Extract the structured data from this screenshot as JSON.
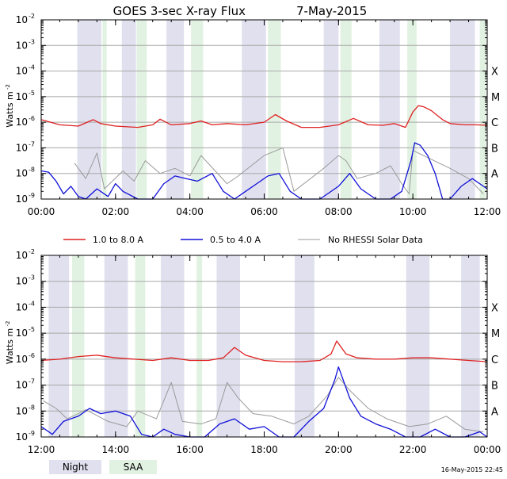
{
  "title": "GOES 3-sec X-ray Flux",
  "date": "7-May-2015",
  "footer_timestamp": "16-May-2015 22:45",
  "colors": {
    "long_channel": "#e02020",
    "short_channel": "#1010d8",
    "no_rhessi": "#9a9a9a",
    "night_band": "#e0e0ef",
    "saa_band": "#e2f2e2",
    "grid": "#a8a8a8",
    "axis": "#000000"
  },
  "legend": {
    "long": "1.0 to 8.0 A",
    "short": "0.5 to 4.0 A",
    "norhessi": "No RHESSI Solar Data",
    "night": "Night",
    "saa": "SAA"
  },
  "chart_data": [
    {
      "type": "line",
      "panel": "top",
      "ylabel": "Watts m",
      "ylabel_exponent": "-2",
      "yscale": "log",
      "ylim_exp": [
        -9,
        -2
      ],
      "y_ticks": [
        {
          "base": "10",
          "exp": "-2"
        },
        {
          "base": "10",
          "exp": "-3"
        },
        {
          "base": "10",
          "exp": "-4"
        },
        {
          "base": "10",
          "exp": "-5"
        },
        {
          "base": "10",
          "exp": "-6"
        },
        {
          "base": "10",
          "exp": "-7"
        },
        {
          "base": "10",
          "exp": "-8"
        },
        {
          "base": "10",
          "exp": "-9"
        }
      ],
      "xlim_hours": [
        0,
        12
      ],
      "x_ticks": [
        "00:00",
        "02:00",
        "04:00",
        "06:00",
        "08:00",
        "10:00",
        "12:00"
      ],
      "class_labels": [
        "X",
        "M",
        "C",
        "B",
        "A"
      ],
      "night_bands_hours": [
        [
          0.97,
          1.62
        ],
        [
          2.17,
          2.55
        ],
        [
          3.37,
          3.84
        ],
        [
          5.4,
          6.05
        ],
        [
          7.6,
          8.0
        ],
        [
          9.1,
          9.65
        ],
        [
          11.0,
          11.67
        ]
      ],
      "saa_bands_hours": [
        [
          1.65,
          1.76
        ],
        [
          2.57,
          2.84
        ],
        [
          4.03,
          4.36
        ],
        [
          6.1,
          6.45
        ],
        [
          8.05,
          8.35
        ],
        [
          9.85,
          10.1
        ],
        [
          11.8,
          11.97
        ]
      ],
      "series": [
        {
          "name": "1.0 to 8.0 A",
          "color": "#e02020",
          "x": [
            0,
            0.5,
            1,
            1.4,
            1.6,
            2,
            2.6,
            3,
            3.2,
            3.5,
            4,
            4.3,
            4.6,
            5,
            5.5,
            6,
            6.3,
            6.6,
            7,
            7.5,
            8,
            8.4,
            8.8,
            9.2,
            9.5,
            9.8,
            10,
            10.15,
            10.3,
            10.5,
            10.8,
            11,
            11.4,
            11.7,
            12
          ],
          "log10": [
            -5.9,
            -6.1,
            -6.15,
            -5.9,
            -6.05,
            -6.15,
            -6.2,
            -6.1,
            -5.88,
            -6.1,
            -6.05,
            -5.95,
            -6.1,
            -6.05,
            -6.1,
            -6.0,
            -5.7,
            -5.95,
            -6.2,
            -6.2,
            -6.1,
            -5.85,
            -6.1,
            -6.12,
            -6.05,
            -6.2,
            -5.6,
            -5.35,
            -5.4,
            -5.55,
            -5.9,
            -6.05,
            -6.1,
            -6.1,
            -6.12
          ]
        },
        {
          "name": "0.5 to 4.0 A",
          "color": "#1010d8",
          "x": [
            0,
            0.2,
            0.4,
            0.6,
            0.8,
            1.0,
            1.2,
            1.5,
            1.8,
            2.0,
            2.2,
            2.6,
            3.0,
            3.3,
            3.6,
            3.9,
            4.2,
            4.6,
            4.9,
            5.2,
            5.5,
            5.8,
            6.1,
            6.4,
            6.7,
            7.0,
            7.5,
            8.0,
            8.3,
            8.6,
            9.0,
            9.4,
            9.7,
            9.95,
            10.05,
            10.2,
            10.4,
            10.6,
            10.8,
            11.0,
            11.3,
            11.6,
            12.0
          ],
          "log10": [
            -7.9,
            -7.95,
            -8.3,
            -8.8,
            -8.5,
            -8.9,
            -9.0,
            -8.6,
            -8.9,
            -8.4,
            -8.7,
            -9.0,
            -9.0,
            -8.4,
            -8.1,
            -8.2,
            -8.3,
            -8.0,
            -8.7,
            -9.0,
            -8.7,
            -8.4,
            -8.1,
            -8.0,
            -8.7,
            -9.0,
            -9.0,
            -8.5,
            -8.0,
            -8.6,
            -9.0,
            -9.0,
            -8.7,
            -7.5,
            -6.8,
            -6.9,
            -7.3,
            -8.0,
            -9.0,
            -9.0,
            -8.5,
            -8.2,
            -8.6
          ]
        },
        {
          "name": "No RHESSI Solar Data",
          "color": "#9a9a9a",
          "x": [
            0.9,
            1.2,
            1.5,
            1.7,
            2.2,
            2.5,
            2.8,
            3.2,
            3.6,
            4.0,
            4.3,
            5.0,
            5.3,
            6.0,
            6.5,
            6.8,
            7.6,
            8.0,
            8.2,
            8.5,
            9.0,
            9.4,
            9.7,
            9.9,
            10.0,
            11.0,
            11.5,
            11.9
          ],
          "log10": [
            -7.6,
            -8.2,
            -7.2,
            -8.6,
            -7.9,
            -8.3,
            -7.5,
            -8.0,
            -7.8,
            -8.1,
            -7.3,
            -8.4,
            -8.1,
            -7.3,
            -7.0,
            -8.7,
            -7.8,
            -7.3,
            -7.5,
            -8.2,
            -8.0,
            -7.7,
            -8.4,
            -8.8,
            -7.1,
            -7.8,
            -8.2,
            -8.8
          ]
        }
      ]
    },
    {
      "type": "line",
      "panel": "bottom",
      "ylabel": "Watts m",
      "ylabel_exponent": "-2",
      "yscale": "log",
      "ylim_exp": [
        -9,
        -2
      ],
      "y_ticks": [
        {
          "base": "10",
          "exp": "-2"
        },
        {
          "base": "10",
          "exp": "-3"
        },
        {
          "base": "10",
          "exp": "-4"
        },
        {
          "base": "10",
          "exp": "-5"
        },
        {
          "base": "10",
          "exp": "-6"
        },
        {
          "base": "10",
          "exp": "-7"
        },
        {
          "base": "10",
          "exp": "-8"
        },
        {
          "base": "10",
          "exp": "-9"
        }
      ],
      "xlim_hours": [
        12,
        24
      ],
      "x_ticks": [
        "12:00",
        "14:00",
        "16:00",
        "18:00",
        "20:00",
        "22:00",
        "00:00"
      ],
      "class_labels": [
        "X",
        "M",
        "C",
        "B",
        "A"
      ],
      "night_bands_hours": [
        [
          12.2,
          12.75
        ],
        [
          13.7,
          14.33
        ],
        [
          15.22,
          15.85
        ],
        [
          16.72,
          17.35
        ],
        [
          18.82,
          19.35
        ],
        [
          21.82,
          22.45
        ],
        [
          23.3,
          23.8
        ]
      ],
      "saa_bands_hours": [
        [
          12.83,
          13.16
        ],
        [
          14.53,
          14.8
        ],
        [
          16.18,
          16.33
        ]
      ],
      "series": [
        {
          "name": "1.0 to 8.0 A",
          "color": "#e02020",
          "x": [
            12,
            12.5,
            13,
            13.5,
            14,
            14.5,
            15,
            15.5,
            16,
            16.5,
            16.9,
            17.2,
            17.5,
            18,
            18.5,
            19,
            19.5,
            19.8,
            19.95,
            20.2,
            20.5,
            21,
            21.5,
            22,
            22.5,
            23,
            23.5,
            24
          ],
          "log10": [
            -6.05,
            -6.0,
            -5.9,
            -5.85,
            -5.95,
            -6.0,
            -6.05,
            -5.95,
            -6.05,
            -6.05,
            -5.95,
            -5.55,
            -5.85,
            -6.05,
            -6.1,
            -6.1,
            -6.05,
            -5.8,
            -5.3,
            -5.8,
            -5.95,
            -6.0,
            -6.0,
            -5.95,
            -5.95,
            -6.0,
            -6.05,
            -6.1
          ]
        },
        {
          "name": "0.5 to 4.0 A",
          "color": "#1010d8",
          "x": [
            12,
            12.3,
            12.6,
            13.0,
            13.3,
            13.6,
            14.0,
            14.4,
            14.7,
            15.0,
            15.3,
            15.6,
            16.0,
            16.4,
            16.8,
            17.2,
            17.6,
            18.0,
            18.4,
            18.8,
            19.2,
            19.6,
            19.9,
            20.0,
            20.3,
            20.6,
            21.0,
            21.4,
            21.8,
            22.2,
            22.6,
            23.0,
            23.4,
            23.8,
            24.0
          ],
          "log10": [
            -8.6,
            -8.9,
            -8.4,
            -8.2,
            -7.9,
            -8.1,
            -8.0,
            -8.2,
            -8.9,
            -9.0,
            -8.7,
            -8.9,
            -9.0,
            -9.0,
            -8.5,
            -8.3,
            -8.7,
            -8.6,
            -9.0,
            -9.0,
            -8.4,
            -7.9,
            -6.8,
            -6.3,
            -7.5,
            -8.2,
            -8.5,
            -8.7,
            -9.0,
            -9.0,
            -8.7,
            -9.0,
            -9.0,
            -8.8,
            -9.0
          ]
        },
        {
          "name": "No RHESSI Solar Data",
          "color": "#9a9a9a",
          "x": [
            12.05,
            12.4,
            12.7,
            13.0,
            13.2,
            13.8,
            14.3,
            14.6,
            15.1,
            15.5,
            15.8,
            16.3,
            16.7,
            17.0,
            17.3,
            17.7,
            18.2,
            18.8,
            19.2,
            19.7,
            20.0,
            20.3,
            20.8,
            21.3,
            21.9,
            22.4,
            22.9,
            23.4,
            23.9
          ],
          "log10": [
            -7.6,
            -7.9,
            -8.3,
            -8.1,
            -7.95,
            -8.4,
            -8.6,
            -8.0,
            -8.3,
            -6.9,
            -8.4,
            -8.5,
            -8.3,
            -6.9,
            -7.5,
            -8.1,
            -8.2,
            -8.5,
            -8.2,
            -7.4,
            -6.7,
            -7.2,
            -7.9,
            -8.3,
            -8.6,
            -8.5,
            -8.2,
            -8.7,
            -8.8
          ]
        }
      ]
    }
  ]
}
